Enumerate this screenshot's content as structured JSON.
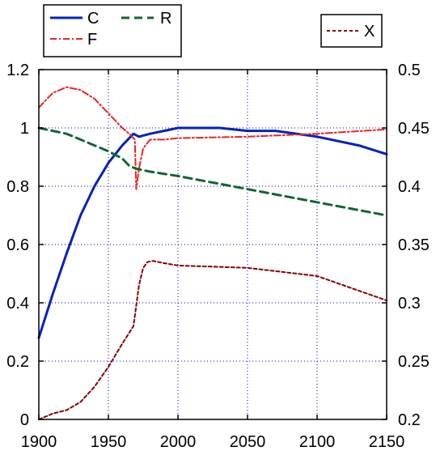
{
  "chart_data": {
    "type": "line",
    "x_ticks": [
      "1900",
      "1950",
      "2000",
      "2050",
      "2100",
      "2150"
    ],
    "y_left_ticks": [
      "0",
      "0.2",
      "0.4",
      "0.6",
      "0.8",
      "1",
      "1.2"
    ],
    "y_right_ticks": [
      "0.2",
      "0.25",
      "0.3",
      "0.35",
      "0.4",
      "0.45",
      "0.5"
    ],
    "xlim": [
      1900,
      2150
    ],
    "ylim_left": [
      0,
      1.2
    ],
    "ylim_right": [
      0.2,
      0.5
    ],
    "grid": true,
    "series": [
      {
        "name": "C",
        "axis": "left",
        "color": "#0022bb",
        "style": "solid",
        "x": [
          1900,
          1910,
          1920,
          1930,
          1940,
          1950,
          1960,
          1968,
          1972,
          1980,
          1990,
          2000,
          2010,
          2030,
          2050,
          2070,
          2100,
          2130,
          2150
        ],
        "y": [
          0.28,
          0.43,
          0.57,
          0.7,
          0.8,
          0.88,
          0.94,
          0.98,
          0.97,
          0.98,
          0.99,
          1.0,
          1.0,
          1.0,
          0.99,
          0.99,
          0.97,
          0.94,
          0.91
        ]
      },
      {
        "name": "F",
        "axis": "left",
        "color": "#ee2222",
        "style": "dashdot",
        "x": [
          1900,
          1910,
          1920,
          1930,
          1940,
          1950,
          1960,
          1965,
          1969,
          1970,
          1972,
          1975,
          1980,
          1990,
          2000,
          2050,
          2100,
          2150
        ],
        "y": [
          1.07,
          1.12,
          1.14,
          1.13,
          1.1,
          1.05,
          1.0,
          0.98,
          0.96,
          0.79,
          0.86,
          0.93,
          0.96,
          0.96,
          0.965,
          0.97,
          0.98,
          0.995
        ]
      },
      {
        "name": "R",
        "axis": "left",
        "color": "#116633",
        "style": "dashed",
        "x": [
          1900,
          1910,
          1920,
          1930,
          1940,
          1950,
          1960,
          1965,
          1970,
          1980,
          2000,
          2050,
          2100,
          2150
        ],
        "y": [
          1.0,
          0.99,
          0.98,
          0.96,
          0.94,
          0.92,
          0.895,
          0.87,
          0.86,
          0.85,
          0.835,
          0.79,
          0.745,
          0.7
        ]
      },
      {
        "name": "X",
        "axis": "right",
        "color": "#880000",
        "style": "dotted",
        "x": [
          1900,
          1910,
          1920,
          1930,
          1940,
          1950,
          1960,
          1968,
          1972,
          1975,
          1978,
          1982,
          1990,
          2000,
          2050,
          2100,
          2150
        ],
        "y": [
          0.2,
          0.205,
          0.208,
          0.215,
          0.228,
          0.245,
          0.265,
          0.28,
          0.315,
          0.33,
          0.335,
          0.336,
          0.334,
          0.332,
          0.33,
          0.323,
          0.302
        ]
      }
    ]
  },
  "legend_left": {
    "labels": [
      "C",
      "F",
      "R"
    ]
  },
  "legend_right": {
    "labels": [
      "X"
    ]
  }
}
